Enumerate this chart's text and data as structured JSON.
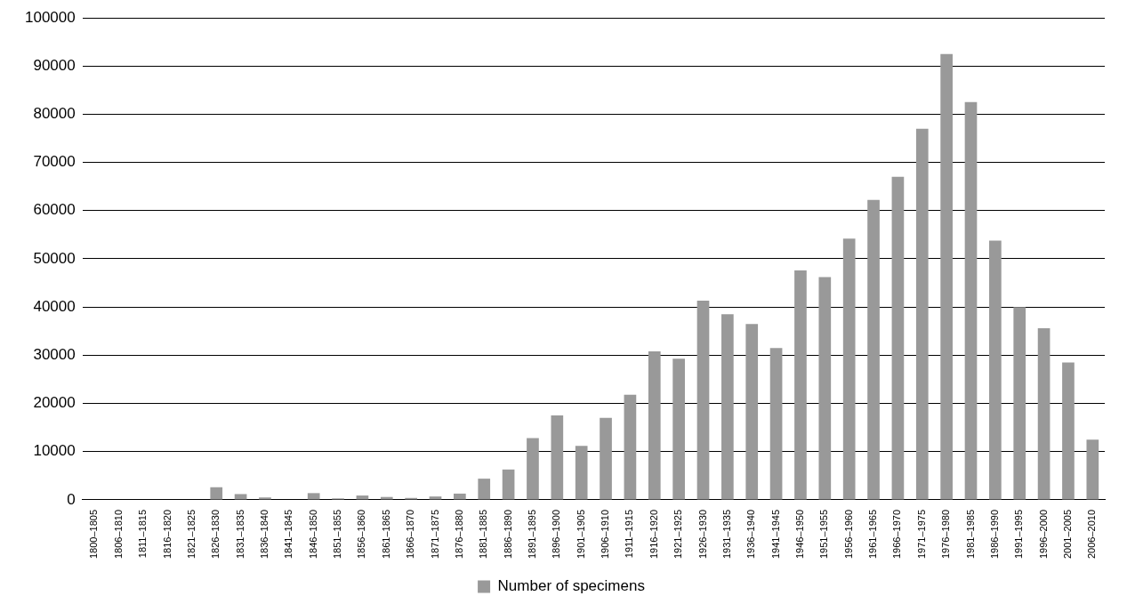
{
  "chart_data": {
    "type": "bar",
    "categories": [
      "1800–1805",
      "1806–1810",
      "1811–1815",
      "1816–1820",
      "1821–1825",
      "1826–1830",
      "1831–1835",
      "1836–1840",
      "1841–1845",
      "1846–1850",
      "1851–1855",
      "1856–1860",
      "1861–1865",
      "1866–1870",
      "1871–1875",
      "1876–1880",
      "1881–1885",
      "1886–1890",
      "1891–1895",
      "1896–1900",
      "1901–1905",
      "1906–1910",
      "1911–1915",
      "1916–1920",
      "1921–1925",
      "1926–1930",
      "1931–1935",
      "1936–1940",
      "1941–1945",
      "1946–1950",
      "1951–1955",
      "1956–1960",
      "1961–1965",
      "1966–1970",
      "1971–1975",
      "1976–1980",
      "1981–1985",
      "1986–1990",
      "1991–1995",
      "1996–2000",
      "2001–2005",
      "2006–2010"
    ],
    "series": [
      {
        "name": "Number of specimens",
        "color": "#999999",
        "values": [
          0,
          0,
          null,
          0,
          0,
          2600,
          1200,
          500,
          null,
          1400,
          300,
          900,
          600,
          400,
          700,
          1300,
          4400,
          6300,
          12800,
          17500,
          11200,
          17000,
          21800,
          30800,
          29300,
          41300,
          38500,
          36500,
          31500,
          47600,
          46200,
          54200,
          62200,
          67000,
          77000,
          92500,
          82500,
          53800,
          40000,
          35600,
          28500,
          12500
        ]
      }
    ],
    "ylim": [
      0,
      100000
    ],
    "yticks": [
      0,
      10000,
      20000,
      30000,
      40000,
      50000,
      60000,
      70000,
      80000,
      90000,
      100000
    ],
    "grid": "y",
    "legend": "bottom"
  }
}
